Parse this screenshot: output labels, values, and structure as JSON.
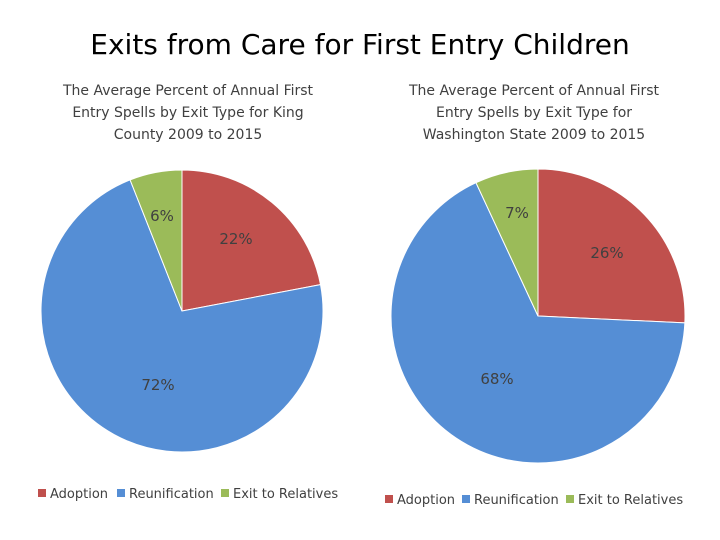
{
  "title": "Exits from Care for First Entry Children",
  "colors": {
    "Adoption": "#C0504D",
    "Reunification": "#558ED5",
    "Exit to Relatives": "#9BBB59"
  },
  "chart_data": [
    {
      "type": "pie",
      "title": "The Average Percent of Annual First Entry Spells by Exit Type for King County 2009 to 2015",
      "title_lines": [
        "The Average Percent of Annual First",
        "Entry Spells by Exit Type for King",
        "County 2009 to 2015"
      ],
      "categories": [
        "Adoption",
        "Reunification",
        "Exit to Relatives"
      ],
      "values": [
        22,
        72,
        6
      ],
      "labels": [
        "22%",
        "72%",
        "6%"
      ],
      "legend": "bottom"
    },
    {
      "type": "pie",
      "title": "The Average Percent of Annual First Entry Spells by Exit Type for Washington State 2009 to 2015",
      "title_lines": [
        "The Average Percent of Annual First",
        "Entry Spells by Exit Type for",
        "Washington State 2009 to 2015"
      ],
      "categories": [
        "Adoption",
        "Reunification",
        "Exit to Relatives"
      ],
      "values": [
        26,
        68,
        7
      ],
      "labels": [
        "26%",
        "68%",
        "7%"
      ],
      "legend": "bottom"
    }
  ]
}
